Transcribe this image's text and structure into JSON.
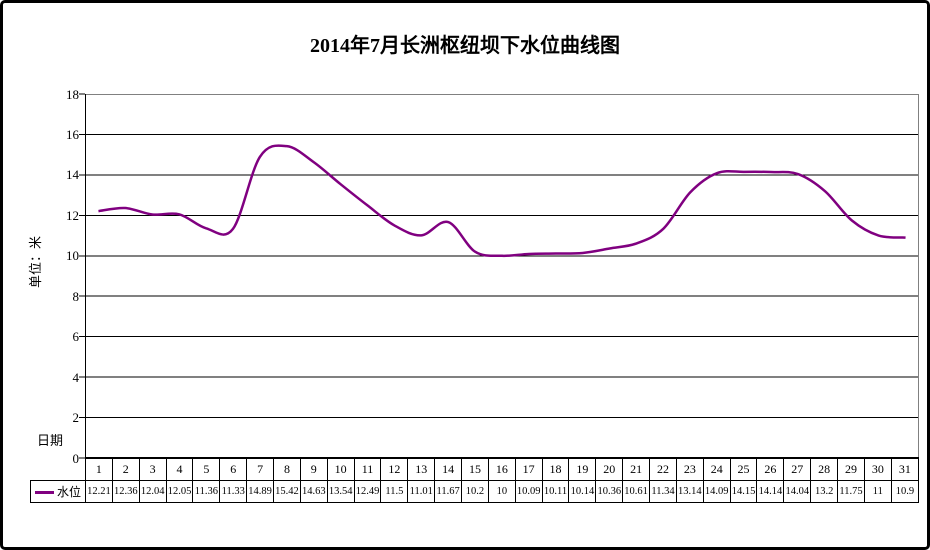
{
  "window": {
    "background": "#ffffff",
    "frame_border_color": "#000000"
  },
  "chart_data": {
    "type": "line",
    "title": "2014年7月长洲枢纽坝下水位曲线图",
    "ylabel": "单位：米",
    "xlabel": "日期",
    "ylim": [
      0,
      18
    ],
    "yticks": [
      18,
      16,
      14,
      12,
      10,
      8,
      6,
      4,
      2,
      0
    ],
    "grid": "horizontal",
    "legend_position": "table-left",
    "categories": [
      1,
      2,
      3,
      4,
      5,
      6,
      7,
      8,
      9,
      10,
      11,
      12,
      13,
      14,
      15,
      16,
      17,
      18,
      19,
      20,
      21,
      22,
      23,
      24,
      25,
      26,
      27,
      28,
      29,
      30,
      31
    ],
    "series": [
      {
        "name": "水位",
        "color": "#800080",
        "values": [
          12.21,
          12.36,
          12.04,
          12.05,
          11.36,
          11.33,
          14.89,
          15.42,
          14.63,
          13.54,
          12.49,
          11.5,
          11.01,
          11.67,
          10.2,
          10,
          10.09,
          10.11,
          10.14,
          10.36,
          10.61,
          11.34,
          13.14,
          14.09,
          14.15,
          14.14,
          14.04,
          13.2,
          11.75,
          11,
          10.9
        ]
      }
    ],
    "colors": {
      "line": "#800080",
      "gridline": "#000000",
      "axis": "#000000",
      "plot_border": "#808080",
      "text": "#000000"
    }
  }
}
